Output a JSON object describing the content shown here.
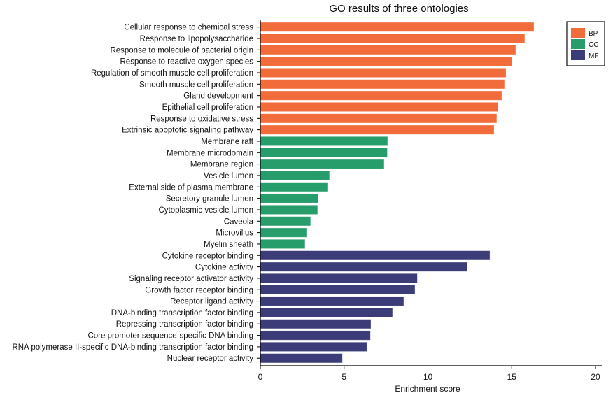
{
  "chart_data": {
    "type": "bar",
    "orientation": "horizontal",
    "title": "GO results of three ontologies",
    "xlabel": "Enrichment score",
    "ylabel": "",
    "xlim": [
      0,
      20.5
    ],
    "xticks": [
      0,
      5,
      10,
      15,
      20
    ],
    "grid": false,
    "legend": {
      "position": "top-right",
      "entries": [
        {
          "label": "BP",
          "color": "#f26b3a"
        },
        {
          "label": "CC",
          "color": "#289d6c"
        },
        {
          "label": "MF",
          "color": "#3b3c78"
        }
      ]
    },
    "categories": [
      "Cellular response to chemical stress",
      "Response to lipopolysaccharide",
      "Response to molecule of bacterial origin",
      "Response to reactive oxygen species",
      "Regulation of smooth muscle cell proliferation",
      "Smooth muscle cell proliferation",
      "Gland development",
      "Epithelial cell proliferation",
      "Response to oxidative stress",
      "Extrinsic apoptotic signaling pathway",
      "Membrane raft",
      "Membrane microdomain",
      "Membrane region",
      "Vesicle lumen",
      "External side of plasma membrane",
      "Secretory granule lumen",
      "Cytoplasmic vesicle lumen",
      "Caveola",
      "Microvillus",
      "Myelin sheath",
      "Cytokine receptor binding",
      "Cytokine activity",
      "Signaling receptor activator activity",
      "Growth factor receptor binding",
      "Receptor ligand activity",
      "DNA-binding transcription factor binding",
      "Repressing transcription factor binding",
      "Core promoter sequence-specific DNA binding",
      "RNA polymerase II-specific DNA-binding transcription factor binding",
      "Nuclear receptor activity"
    ],
    "values": [
      16.33,
      15.78,
      15.24,
      15.03,
      14.66,
      14.57,
      14.41,
      14.2,
      14.11,
      13.95,
      7.6,
      7.58,
      7.39,
      4.13,
      4.05,
      3.46,
      3.42,
      3.0,
      2.8,
      2.67,
      13.7,
      12.36,
      9.37,
      9.23,
      8.56,
      7.89,
      6.6,
      6.57,
      6.36,
      4.9
    ],
    "groups": [
      "BP",
      "BP",
      "BP",
      "BP",
      "BP",
      "BP",
      "BP",
      "BP",
      "BP",
      "BP",
      "CC",
      "CC",
      "CC",
      "CC",
      "CC",
      "CC",
      "CC",
      "CC",
      "CC",
      "CC",
      "MF",
      "MF",
      "MF",
      "MF",
      "MF",
      "MF",
      "MF",
      "MF",
      "MF",
      "MF"
    ]
  }
}
